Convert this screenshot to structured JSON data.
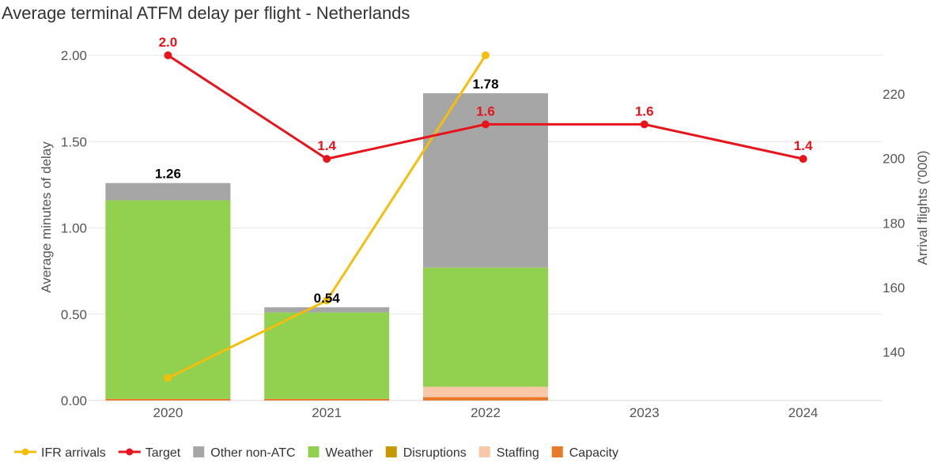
{
  "chart_data": {
    "type": "bar",
    "title": "Average terminal ATFM delay per flight - Netherlands",
    "ylabel": "Average minutes of delay",
    "y2label": "Arrival flights ('000)",
    "categories": [
      "2020",
      "2021",
      "2022",
      "2023",
      "2024"
    ],
    "ylim": [
      0,
      2.0
    ],
    "y_ticks": [
      "0.00",
      "0.50",
      "1.00",
      "1.50",
      "2.00"
    ],
    "y_tick_values": [
      0,
      0.5,
      1.0,
      1.5,
      2.0
    ],
    "y2lim": [
      125,
      232
    ],
    "y2_ticks": [
      "140",
      "160",
      "180",
      "200",
      "220"
    ],
    "y2_tick_values": [
      140,
      160,
      180,
      200,
      220
    ],
    "stacked_series": [
      {
        "name": "Capacity",
        "color": "#e87b2a",
        "values": [
          0.01,
          0.01,
          0.02,
          null,
          null
        ]
      },
      {
        "name": "Staffing",
        "color": "#f8c8a8",
        "values": [
          0,
          0,
          0.06,
          null,
          null
        ]
      },
      {
        "name": "Disruptions",
        "color": "#c59a00",
        "values": [
          0,
          0,
          0,
          null,
          null
        ]
      },
      {
        "name": "Weather",
        "color": "#92d050",
        "values": [
          1.15,
          0.5,
          0.69,
          null,
          null
        ]
      },
      {
        "name": "Other non-ATC",
        "color": "#a6a6a6",
        "values": [
          0.1,
          0.03,
          1.01,
          null,
          null
        ]
      }
    ],
    "bar_totals": [
      "1.26",
      "0.54",
      "1.78",
      null,
      null
    ],
    "bar_total_values": [
      1.26,
      0.54,
      1.78,
      null,
      null
    ],
    "target": {
      "name": "Target",
      "color": "#e8141c",
      "values": [
        2.0,
        1.4,
        1.6,
        1.6,
        1.4
      ],
      "labels": [
        "2.0",
        "1.4",
        "1.6",
        "1.6",
        "1.4"
      ]
    },
    "ifr_arrivals": {
      "name": "IFR arrivals",
      "color": "#f5be0b",
      "axis": "right",
      "values": [
        132,
        156,
        232,
        null,
        null
      ]
    },
    "legend": [
      {
        "name": "IFR arrivals",
        "kind": "line",
        "color": "#f5be0b"
      },
      {
        "name": "Target",
        "kind": "line",
        "color": "#e8141c"
      },
      {
        "name": "Other non-ATC",
        "kind": "box",
        "color": "#a6a6a6"
      },
      {
        "name": "Weather",
        "kind": "box",
        "color": "#92d050"
      },
      {
        "name": "Disruptions",
        "kind": "box",
        "color": "#c59a00"
      },
      {
        "name": "Staffing",
        "kind": "box",
        "color": "#f8c8a8"
      },
      {
        "name": "Capacity",
        "kind": "box",
        "color": "#e87b2a"
      }
    ],
    "grid": true,
    "legend_position": "bottom-left"
  }
}
